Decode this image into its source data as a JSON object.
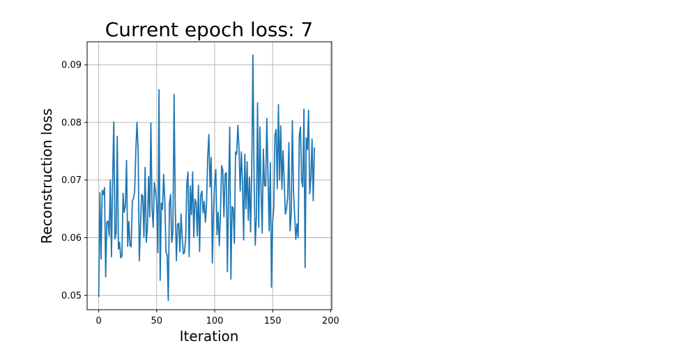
{
  "chart_data": {
    "type": "line",
    "title": "Current epoch loss: 7",
    "xlabel": "Iteration",
    "ylabel": "Reconstruction loss",
    "xlim": [
      -10,
      201
    ],
    "ylim": [
      0.0475,
      0.094
    ],
    "xticks": [
      0,
      50,
      100,
      150,
      200
    ],
    "yticks": [
      0.05,
      0.06,
      0.07,
      0.08,
      0.09
    ],
    "grid": true,
    "colors": {
      "line": "#1f77b4",
      "grid": "#b0b0b0",
      "axes": "#000000"
    },
    "series": [
      {
        "values": [
          0.0498,
          0.0678,
          0.0563,
          0.0682,
          0.0675,
          0.0687,
          0.0532,
          0.0627,
          0.0629,
          0.0603,
          0.07,
          0.0567,
          0.07,
          0.0801,
          0.0598,
          0.0608,
          0.0776,
          0.058,
          0.0592,
          0.0565,
          0.0568,
          0.0677,
          0.0644,
          0.0655,
          0.0734,
          0.0585,
          0.0628,
          0.0587,
          0.0584,
          0.0664,
          0.0668,
          0.068,
          0.075,
          0.08,
          0.0752,
          0.056,
          0.0619,
          0.0675,
          0.0672,
          0.0601,
          0.0722,
          0.0592,
          0.0617,
          0.0706,
          0.0636,
          0.0799,
          0.065,
          0.0618,
          0.0696,
          0.0681,
          0.0658,
          0.0574,
          0.0857,
          0.0526,
          0.066,
          0.0649,
          0.071,
          0.0665,
          0.0575,
          0.057,
          0.0491,
          0.066,
          0.0675,
          0.0592,
          0.0609,
          0.0849,
          0.0657,
          0.056,
          0.0623,
          0.0625,
          0.0576,
          0.0641,
          0.0601,
          0.0572,
          0.0574,
          0.0599,
          0.0694,
          0.0714,
          0.0567,
          0.069,
          0.064,
          0.0714,
          0.0601,
          0.0667,
          0.0661,
          0.0603,
          0.0691,
          0.0576,
          0.0674,
          0.0681,
          0.0643,
          0.0663,
          0.0627,
          0.0659,
          0.074,
          0.0779,
          0.0688,
          0.0739,
          0.0556,
          0.0647,
          0.0696,
          0.0718,
          0.0605,
          0.0644,
          0.0586,
          0.0643,
          0.0725,
          0.0718,
          0.0636,
          0.071,
          0.0713,
          0.0541,
          0.068,
          0.0792,
          0.0528,
          0.0654,
          0.0651,
          0.059,
          0.0749,
          0.0745,
          0.0795,
          0.0754,
          0.0681,
          0.0749,
          0.0698,
          0.0596,
          0.0745,
          0.065,
          0.0732,
          0.063,
          0.0705,
          0.061,
          0.0721,
          0.0917,
          0.0703,
          0.0587,
          0.0637,
          0.0834,
          0.0618,
          0.0792,
          0.0684,
          0.0608,
          0.0754,
          0.069,
          0.069,
          0.0807,
          0.0707,
          0.0612,
          0.073,
          0.0514,
          0.0627,
          0.0652,
          0.0778,
          0.0788,
          0.0685,
          0.0831,
          0.07,
          0.0794,
          0.0684,
          0.0751,
          0.0697,
          0.0641,
          0.065,
          0.0672,
          0.0765,
          0.0612,
          0.064,
          0.0803,
          0.0679,
          0.0638,
          0.0597,
          0.0624,
          0.06,
          0.0777,
          0.0792,
          0.0699,
          0.0688,
          0.0823,
          0.0548,
          0.0773,
          0.0753,
          0.0821,
          0.0676,
          0.0704,
          0.0771,
          0.0664,
          0.0756
        ]
      }
    ]
  }
}
